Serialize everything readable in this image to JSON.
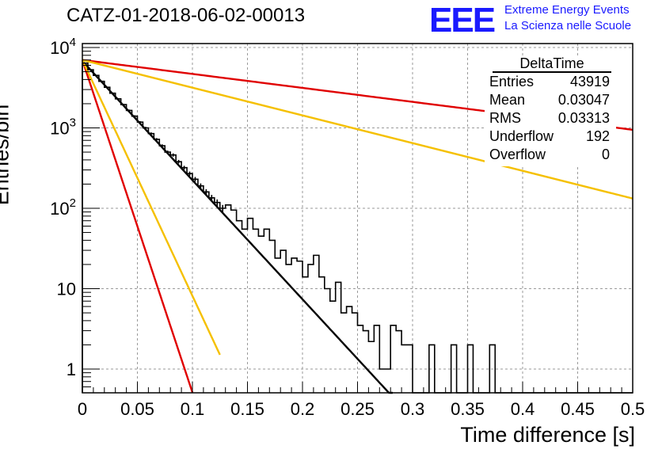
{
  "header": {
    "run_title": "CATZ-01-2018-06-02-00013",
    "logo_text": "EEE",
    "logo_line1": "Extreme Energy Events",
    "logo_line2": "La Scienza nelle Scuole",
    "logo_color": "#1a1aff"
  },
  "stats_box": {
    "title": "DeltaTime",
    "rows": [
      {
        "key": "Entries",
        "value": "43919"
      },
      {
        "key": "Mean",
        "value": "0.03047"
      },
      {
        "key": "RMS",
        "value": "0.03313"
      },
      {
        "key": "Underflow",
        "value": "192"
      },
      {
        "key": "Overflow",
        "value": "0"
      }
    ]
  },
  "chart_data": {
    "type": "line",
    "title": "CATZ-01-2018-06-02-00013",
    "xlabel": "Time difference [s]",
    "ylabel": "Entries/bin",
    "xlim": [
      0,
      0.5
    ],
    "ylim": [
      0.45,
      12000
    ],
    "y_scale": "log",
    "grid": true,
    "x_ticks": [
      "0",
      "0.05",
      "0.1",
      "0.15",
      "0.2",
      "0.25",
      "0.3",
      "0.35",
      "0.4",
      "0.45",
      "0.5"
    ],
    "y_ticks": [
      {
        "value": 1,
        "label": "1"
      },
      {
        "value": 10,
        "label": "10"
      },
      {
        "value": 100,
        "label": "10^2"
      },
      {
        "value": 1000,
        "label": "10^3"
      },
      {
        "value": 10000,
        "label": "10^4"
      }
    ],
    "histogram": {
      "bin_width": 0.005,
      "color": "#000000",
      "counts": [
        6400,
        5300,
        4500,
        3800,
        3200,
        2700,
        2300,
        1950,
        1650,
        1400,
        1180,
        1000,
        850,
        720,
        600,
        500,
        460,
        380,
        320,
        270,
        230,
        190,
        160,
        135,
        118,
        100,
        110,
        95,
        70,
        55,
        75,
        55,
        45,
        55,
        40,
        24,
        30,
        20,
        24,
        22,
        14,
        20,
        26,
        14,
        10,
        7,
        12,
        5,
        6,
        5,
        3.5,
        3,
        2.2,
        3.5,
        1,
        1,
        3.5,
        3,
        2,
        2,
        0.45,
        0.45,
        0,
        2,
        0,
        0,
        0,
        2,
        0,
        0,
        2,
        0,
        0,
        0,
        2,
        0,
        0,
        0,
        0,
        0,
        0,
        0,
        0,
        0,
        0,
        0,
        0,
        0,
        0,
        0,
        0,
        0,
        0,
        0,
        0,
        0,
        0,
        0,
        0,
        0
      ],
      "errors_shown_until": 0.13
    },
    "fits": [
      {
        "color": "#000000",
        "y0": 6800,
        "tau": 0.0293,
        "x_end": 0.29
      },
      {
        "color": "#e00000",
        "y0": 7000,
        "tau": 0.25,
        "x_end": 0.5
      },
      {
        "color": "#f5c000",
        "y0": 7000,
        "tau": 0.126,
        "x_end": 0.5
      },
      {
        "color": "#e00000",
        "y0": 7000,
        "tau": 0.0105,
        "x_end": 0.1
      },
      {
        "color": "#f5c000",
        "y0": 7000,
        "tau": 0.0148,
        "x_end": 0.125
      }
    ]
  }
}
